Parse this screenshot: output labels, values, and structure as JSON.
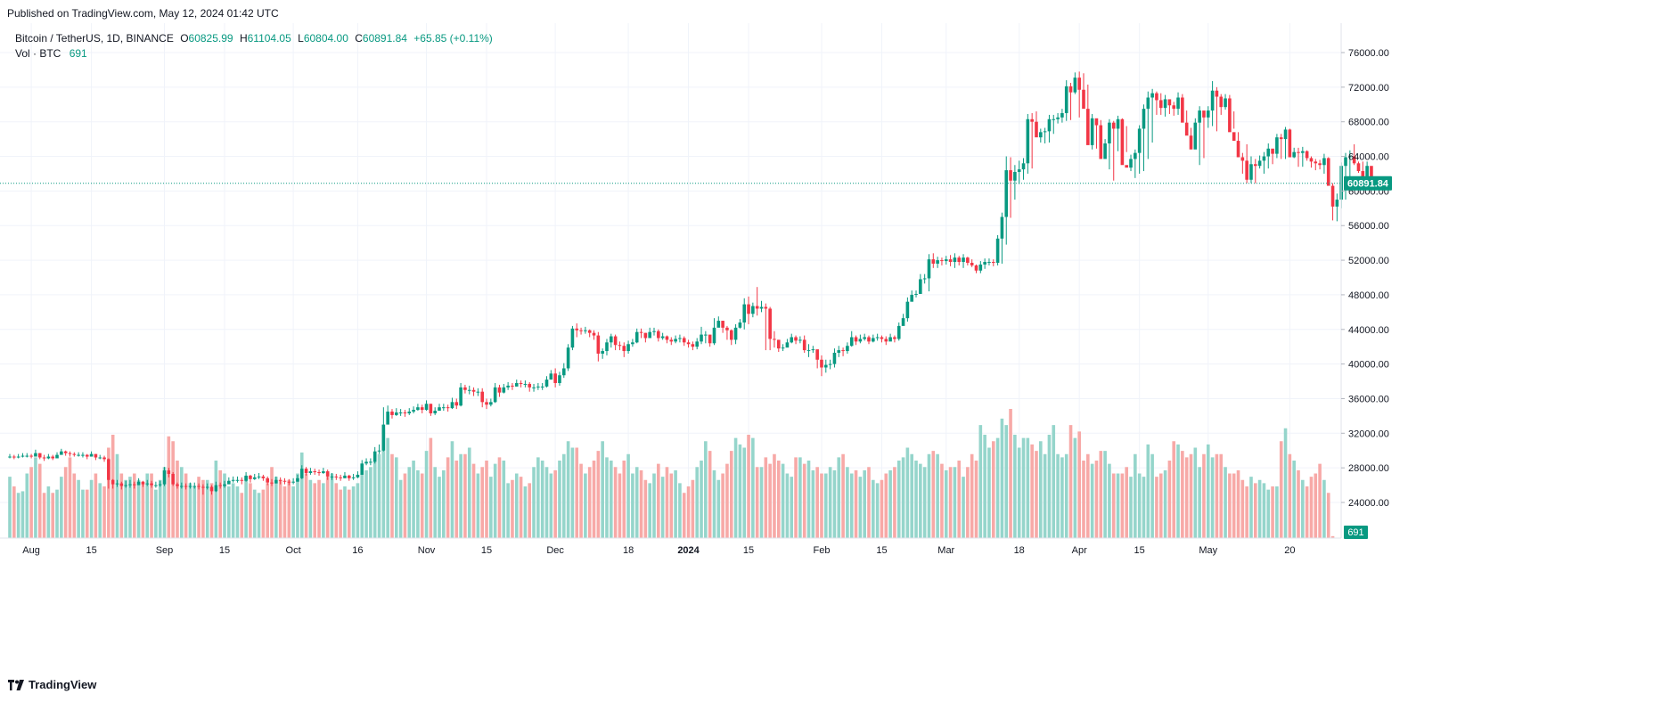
{
  "header": {
    "published": "Published on TradingView.com, May 12, 2024 01:42 UTC"
  },
  "legend": {
    "symbol": "Bitcoin / TetherUS, 1D, BINANCE",
    "open_label": "O",
    "open": "60825.99",
    "high_label": "H",
    "high": "61104.05",
    "low_label": "L",
    "low": "60804.00",
    "close_label": "C",
    "close": "60891.84",
    "change": "+65.85 (+0.11%)",
    "vol_label": "Vol · BTC",
    "vol_value": "691"
  },
  "footer": {
    "brand": "TradingView"
  },
  "colors": {
    "up": "#089981",
    "down": "#f23645",
    "vol_up": "#95d5cb",
    "vol_down": "#f7a9a7",
    "grid": "#f0f3fa"
  },
  "chart_data": {
    "type": "candlestick",
    "symbol": "Bitcoin / TetherUS, 1D, BINANCE",
    "last_price": 60891.84,
    "last_price_label": "60891.84",
    "last_volume_label": "691",
    "ylim": [
      20000,
      78000
    ],
    "y_ticks": [
      24000,
      28000,
      32000,
      36000,
      40000,
      44000,
      48000,
      52000,
      56000,
      60000,
      64000,
      68000,
      72000,
      76000
    ],
    "y_tick_labels": [
      "24000.00",
      "28000.00",
      "32000.00",
      "36000.00",
      "40000.00",
      "44000.00",
      "48000.00",
      "52000.00",
      "56000.00",
      "60000.00",
      "64000.00",
      "68000.00",
      "72000.00",
      "76000.00"
    ],
    "x_ticks": [
      {
        "date": "2023-08-01",
        "label": "Aug",
        "bold": false
      },
      {
        "date": "2023-08-15",
        "label": "15",
        "bold": false
      },
      {
        "date": "2023-09-01",
        "label": "Sep",
        "bold": false
      },
      {
        "date": "2023-09-15",
        "label": "15",
        "bold": false
      },
      {
        "date": "2023-10-01",
        "label": "Oct",
        "bold": false
      },
      {
        "date": "2023-10-16",
        "label": "16",
        "bold": false
      },
      {
        "date": "2023-11-01",
        "label": "Nov",
        "bold": false
      },
      {
        "date": "2023-11-15",
        "label": "15",
        "bold": false
      },
      {
        "date": "2023-12-01",
        "label": "Dec",
        "bold": false
      },
      {
        "date": "2023-12-18",
        "label": "18",
        "bold": false
      },
      {
        "date": "2024-01-01",
        "label": "2024",
        "bold": true
      },
      {
        "date": "2024-01-15",
        "label": "15",
        "bold": false
      },
      {
        "date": "2024-02-01",
        "label": "Feb",
        "bold": false
      },
      {
        "date": "2024-02-15",
        "label": "15",
        "bold": false
      },
      {
        "date": "2024-03-01",
        "label": "Mar",
        "bold": false
      },
      {
        "date": "2024-03-18",
        "label": "18",
        "bold": false
      },
      {
        "date": "2024-04-01",
        "label": "Apr",
        "bold": false
      },
      {
        "date": "2024-04-15",
        "label": "15",
        "bold": false
      },
      {
        "date": "2024-05-01",
        "label": "May",
        "bold": false
      },
      {
        "date": "2024-05-20",
        "label": "20",
        "bold": false
      }
    ],
    "start_date": "2023-07-27",
    "closes": [
      29300,
      29200,
      29300,
      29400,
      29400,
      29300,
      29700,
      29200,
      29100,
      29300,
      29100,
      29500,
      29900,
      29700,
      29600,
      29500,
      29500,
      29500,
      29300,
      29600,
      29200,
      29200,
      29000,
      26600,
      26100,
      26200,
      25900,
      26000,
      26100,
      26000,
      26400,
      26100,
      26200,
      26000,
      26000,
      26100,
      27700,
      27300,
      26100,
      25900,
      25900,
      25800,
      25900,
      25900,
      25800,
      25700,
      25800,
      25300,
      26000,
      25900,
      26100,
      26500,
      26600,
      26600,
      26500,
      27100,
      26700,
      26900,
      27000,
      26800,
      26300,
      26200,
      26600,
      26500,
      26400,
      26300,
      26400,
      26800,
      27900,
      27400,
      27600,
      27500,
      27400,
      27600,
      27000,
      27000,
      26900,
      26800,
      27100,
      26800,
      26900,
      27200,
      28500,
      28700,
      28700,
      29900,
      30000,
      33000,
      34500,
      34100,
      34400,
      34400,
      34300,
      34500,
      34700,
      35000,
      34700,
      35400,
      34300,
      34600,
      35000,
      35000,
      34900,
      35600,
      35200,
      37300,
      37000,
      37000,
      36800,
      36800,
      35600,
      35300,
      35600,
      37300,
      36700,
      37300,
      37500,
      37400,
      37800,
      37700,
      37700,
      37300,
      37300,
      37400,
      37400,
      38200,
      38900,
      37800,
      38700,
      39500,
      41900,
      44100,
      43900,
      43800,
      43900,
      43600,
      43300,
      41200,
      41500,
      42500,
      43200,
      42200,
      42100,
      41500,
      42300,
      42500,
      43700,
      43600,
      43000,
      43700,
      43800,
      43000,
      43200,
      42800,
      42600,
      42900,
      43000,
      42500,
      42300,
      42000,
      42600,
      43400,
      43400,
      42400,
      44200,
      45000,
      44200,
      43900,
      42800,
      44200,
      44800,
      46900,
      45800,
      46700,
      46400,
      46600,
      46400,
      42900,
      42800,
      41800,
      41900,
      42500,
      43100,
      42700,
      42800,
      41600,
      41600,
      41700,
      40500,
      39600,
      39900,
      40000,
      41300,
      41600,
      41500,
      42100,
      43100,
      42600,
      42900,
      43100,
      42600,
      43000,
      43100,
      42900,
      42600,
      43100,
      42900,
      44400,
      45300,
      47200,
      48000,
      48100,
      49800,
      49900,
      52100,
      51600,
      52000,
      51900,
      52100,
      51800,
      52300,
      51800,
      52300,
      51700,
      51400,
      50800,
      51500,
      51800,
      51800,
      51700,
      54500,
      57000,
      62400,
      61200,
      62200,
      62500,
      63200,
      68300,
      68000,
      66200,
      66800,
      66900,
      68300,
      68300,
      68500,
      69000,
      72100,
      71400,
      73100,
      71700,
      69500,
      65300,
      68400,
      67600,
      63700,
      65500,
      67900,
      67200,
      68300,
      63000,
      62700,
      63700,
      64400,
      67200,
      69500,
      70800,
      71300,
      70500,
      69600,
      70600,
      69900,
      69500,
      70800,
      67900,
      66400,
      64800,
      67900,
      69300,
      68500,
      69300,
      71600,
      70900,
      69700,
      70700,
      66800,
      65800,
      63900,
      63500,
      61300,
      63100,
      62900,
      63500,
      64000,
      64900,
      64300,
      66200,
      66000,
      67100,
      63900,
      64500,
      64400,
      64600,
      63800,
      63400,
      63200,
      63000,
      63800,
      60600,
      58200,
      59000,
      62900,
      63900,
      64000,
      63200,
      62300,
      61200,
      62900,
      60800,
      60800,
      60800
    ],
    "highs": [
      29600,
      29500,
      29600,
      29700,
      29700,
      29600,
      30100,
      29700,
      29500,
      29600,
      29500,
      29800,
      30200,
      30000,
      29900,
      29800,
      29800,
      29800,
      29600,
      29900,
      29600,
      29500,
      29400,
      29100,
      26700,
      26600,
      26400,
      26500,
      26600,
      26400,
      26800,
      26500,
      26600,
      26500,
      26400,
      26500,
      28100,
      28000,
      27500,
      26300,
      26300,
      26200,
      26300,
      26300,
      26200,
      26100,
      26200,
      26000,
      26400,
      26300,
      26500,
      26900,
      27000,
      27000,
      26900,
      27500,
      27200,
      27300,
      27400,
      27200,
      27000,
      26700,
      27000,
      26900,
      26800,
      26700,
      26800,
      27200,
      28300,
      28100,
      28000,
      27900,
      27800,
      28000,
      27800,
      27400,
      27300,
      27200,
      27500,
      27200,
      27300,
      27600,
      28900,
      29100,
      29100,
      30400,
      30700,
      35000,
      35200,
      34800,
      34900,
      34800,
      34700,
      34900,
      35100,
      35400,
      35300,
      35800,
      35400,
      35000,
      35400,
      35400,
      35300,
      36100,
      36000,
      37800,
      37600,
      37500,
      37300,
      37200,
      37200,
      36000,
      36000,
      37800,
      37600,
      37700,
      37900,
      37800,
      38200,
      38100,
      38100,
      37900,
      37700,
      37800,
      37800,
      38600,
      39300,
      39500,
      39100,
      40100,
      42300,
      44400,
      44700,
      44200,
      44300,
      44000,
      43900,
      43700,
      41800,
      42900,
      43500,
      43400,
      42600,
      42500,
      42700,
      42900,
      44100,
      44100,
      43600,
      44200,
      44200,
      44000,
      43600,
      43300,
      43100,
      43300,
      43400,
      43200,
      42800,
      42600,
      43000,
      44300,
      43800,
      43200,
      45300,
      45500,
      45000,
      44400,
      44000,
      44600,
      45200,
      47600,
      47800,
      47100,
      48900,
      47300,
      47000,
      46600,
      43800,
      42800,
      42300,
      42900,
      43500,
      43300,
      43200,
      43300,
      42300,
      42100,
      41600,
      41000,
      40500,
      40500,
      41800,
      42100,
      41900,
      42500,
      43800,
      43300,
      43400,
      43500,
      43300,
      43400,
      43500,
      43300,
      43200,
      43500,
      43300,
      44800,
      45800,
      47700,
      48500,
      48500,
      50400,
      50400,
      52700,
      52800,
      52400,
      52300,
      52500,
      52600,
      52800,
      52500,
      52700,
      52400,
      52100,
      51500,
      51900,
      52200,
      52200,
      52100,
      54900,
      57500,
      64000,
      63900,
      63000,
      63500,
      63800,
      68900,
      69000,
      69200,
      67200,
      67300,
      68800,
      68800,
      69000,
      69500,
      72800,
      72500,
      73700,
      73800,
      73600,
      72300,
      68900,
      68200,
      68200,
      66000,
      68300,
      68100,
      68700,
      68400,
      64500,
      64200,
      64800,
      67600,
      70000,
      71500,
      71800,
      71500,
      71300,
      71100,
      70500,
      70300,
      71400,
      71200,
      69300,
      67300,
      68400,
      69800,
      69000,
      69800,
      72700,
      72000,
      71200,
      71200,
      71100,
      67200,
      66800,
      64400,
      65400,
      64000,
      63700,
      64100,
      64500,
      65500,
      64800,
      66600,
      66600,
      67400,
      67200,
      65000,
      65000,
      65100,
      64700,
      64000,
      63700,
      63600,
      64300,
      63900,
      60900,
      59700,
      63300,
      64400,
      64700,
      65400,
      63400,
      63400,
      63400,
      61500,
      61200,
      61100
    ],
    "lows": [
      29100,
      29000,
      29100,
      29200,
      29200,
      29100,
      29400,
      29000,
      28800,
      29000,
      28900,
      29200,
      29600,
      29400,
      29300,
      29300,
      29300,
      29200,
      29000,
      29300,
      28900,
      29000,
      28700,
      25600,
      25600,
      25800,
      25500,
      25700,
      25700,
      25600,
      26000,
      25800,
      25900,
      25700,
      25700,
      25800,
      25900,
      26900,
      25900,
      25600,
      25600,
      25500,
      25600,
      25600,
      25500,
      24900,
      25500,
      24900,
      25200,
      25600,
      25700,
      26100,
      26300,
      26300,
      26100,
      26400,
      26300,
      26600,
      26700,
      26500,
      26000,
      25900,
      26200,
      26100,
      26100,
      26000,
      26100,
      26400,
      26700,
      27100,
      27200,
      27200,
      27100,
      27300,
      26600,
      26600,
      26600,
      26500,
      26800,
      26500,
      26600,
      26800,
      27200,
      28300,
      28300,
      28500,
      29600,
      29900,
      33500,
      33700,
      34000,
      34000,
      33900,
      34100,
      34300,
      34600,
      34300,
      34600,
      34000,
      34100,
      34600,
      34600,
      34500,
      34800,
      34800,
      35100,
      36600,
      36500,
      36300,
      36300,
      35000,
      34800,
      35100,
      35500,
      36200,
      36600,
      37000,
      37000,
      37400,
      37300,
      37300,
      36800,
      36800,
      37000,
      37000,
      37300,
      38200,
      37300,
      37500,
      38400,
      39200,
      41600,
      43100,
      43400,
      43500,
      43100,
      42800,
      40300,
      40600,
      41000,
      41900,
      41600,
      41600,
      40800,
      41200,
      42000,
      42400,
      43000,
      42500,
      43300,
      43300,
      42600,
      42800,
      42400,
      42200,
      42400,
      42500,
      42100,
      41900,
      41600,
      41700,
      42300,
      42400,
      42000,
      42200,
      44300,
      43600,
      42800,
      42200,
      42300,
      44100,
      44000,
      44600,
      45400,
      45600,
      46000,
      41600,
      41600,
      41900,
      41400,
      41500,
      42000,
      42400,
      42300,
      42400,
      41300,
      40800,
      41300,
      39500,
      38600,
      39000,
      39400,
      39600,
      40800,
      40900,
      41200,
      42000,
      42200,
      42400,
      42700,
      42300,
      42500,
      42700,
      42500,
      42200,
      42700,
      42500,
      42700,
      44800,
      44900,
      47300,
      47700,
      48100,
      49300,
      48400,
      51100,
      51100,
      51400,
      51500,
      51300,
      51100,
      51400,
      51100,
      51400,
      51200,
      50500,
      50500,
      51000,
      51400,
      51300,
      51400,
      51600,
      53800,
      56900,
      59000,
      60800,
      61300,
      62000,
      62600,
      67300,
      65600,
      65500,
      65600,
      66600,
      67800,
      67900,
      68100,
      68200,
      71200,
      68500,
      71200,
      68200,
      64800,
      64900,
      67200,
      64700,
      62500,
      61200,
      64600,
      66800,
      67500,
      62300,
      61500,
      62000,
      62300,
      63700,
      65600,
      68800,
      68800,
      68600,
      68900,
      68700,
      68800,
      68300,
      67600,
      66200,
      64900,
      63000,
      63800,
      67300,
      67500,
      66900,
      68800,
      69400,
      68600,
      69200,
      64400,
      62000,
      60900,
      60900,
      60900,
      62600,
      62000,
      62600,
      63100,
      63800,
      63700,
      63700,
      65500,
      63800,
      62800,
      62800,
      63500,
      62700,
      62400,
      62500,
      62000,
      60800,
      56600,
      56500,
      58000,
      59000,
      61500,
      63000,
      62100,
      60700,
      60200,
      60800,
      60700,
      60400
    ],
    "volumes": [
      19000,
      16000,
      14000,
      14500,
      20000,
      22000,
      25000,
      23000,
      14000,
      16000,
      14000,
      15000,
      19000,
      22000,
      25000,
      20000,
      18000,
      15000,
      15000,
      18000,
      20000,
      17000,
      16000,
      28000,
      32000,
      26000,
      20000,
      18000,
      19000,
      20000,
      18000,
      17000,
      20000,
      20000,
      15000,
      18000,
      22000,
      31500,
      30000,
      24000,
      22000,
      20000,
      17000,
      16000,
      19000,
      18000,
      18000,
      17000,
      24000,
      21000,
      20000,
      16000,
      17000,
      16000,
      14000,
      19000,
      17000,
      15000,
      14000,
      15000,
      17000,
      22000,
      19000,
      18000,
      16000,
      18000,
      16000,
      20000,
      26500,
      20000,
      18000,
      17000,
      18000,
      17000,
      19000,
      20000,
      17000,
      15000,
      16000,
      15000,
      16000,
      17000,
      20000,
      21000,
      22000,
      24000,
      26000,
      34000,
      31000,
      26000,
      25000,
      18000,
      20000,
      22000,
      24000,
      21000,
      20000,
      27000,
      31000,
      22000,
      19000,
      21000,
      25000,
      30000,
      24000,
      26000,
      26000,
      28000,
      23000,
      20000,
      22000,
      24000,
      19000,
      23000,
      25000,
      24000,
      17000,
      18000,
      20000,
      19000,
      16000,
      17000,
      22000,
      25000,
      24000,
      22000,
      20000,
      21000,
      24000,
      26000,
      30000,
      28000,
      28000,
      23000,
      20000,
      22000,
      24000,
      27000,
      30000,
      25000,
      24000,
      22000,
      20000,
      24000,
      26000,
      20000,
      22000,
      21000,
      18000,
      17000,
      20000,
      23000,
      19000,
      22000,
      20000,
      21000,
      17000,
      14000,
      16000,
      18000,
      22000,
      24000,
      30000,
      27000,
      21000,
      18000,
      20000,
      23000,
      27000,
      31000,
      29000,
      28000,
      32000,
      31000,
      22000,
      22000,
      25000,
      23000,
      26000,
      24000,
      23000,
      20000,
      19000,
      25000,
      25000,
      23000,
      24000,
      21000,
      22000,
      20000,
      20000,
      22000,
      21000,
      25000,
      26000,
      22000,
      20000,
      21000,
      19000,
      21000,
      22000,
      18000,
      17000,
      18000,
      20000,
      21000,
      22000,
      24000,
      25000,
      28000,
      26000,
      24000,
      23000,
      22000,
      26000,
      27000,
      26000,
      23000,
      21000,
      22000,
      22000,
      24000,
      19000,
      22000,
      26000,
      24000,
      35000,
      32000,
      28000,
      30000,
      31000,
      37000,
      35000,
      40000,
      32000,
      28000,
      31000,
      31000,
      29000,
      27000,
      30000,
      26000,
      32000,
      35000,
      26000,
      25000,
      26000,
      35000,
      31000,
      33000,
      24000,
      26000,
      23000,
      24000,
      27000,
      27000,
      23000,
      20000,
      20000,
      20000,
      22000,
      19000,
      26000,
      20000,
      19000,
      29000,
      26000,
      19000,
      20000,
      21000,
      24000,
      30000,
      29000,
      27000,
      25000,
      26000,
      28000,
      22000,
      26000,
      29000,
      25000,
      26000,
      26000,
      22000,
      20000,
      20000,
      21000,
      18000,
      16000,
      19000,
      17000,
      18000,
      17000,
      15000,
      16000,
      16000,
      30000,
      34000,
      26000,
      24000,
      21000,
      18000,
      16000,
      19000,
      20000,
      23000,
      18000,
      14000,
      600
    ]
  }
}
